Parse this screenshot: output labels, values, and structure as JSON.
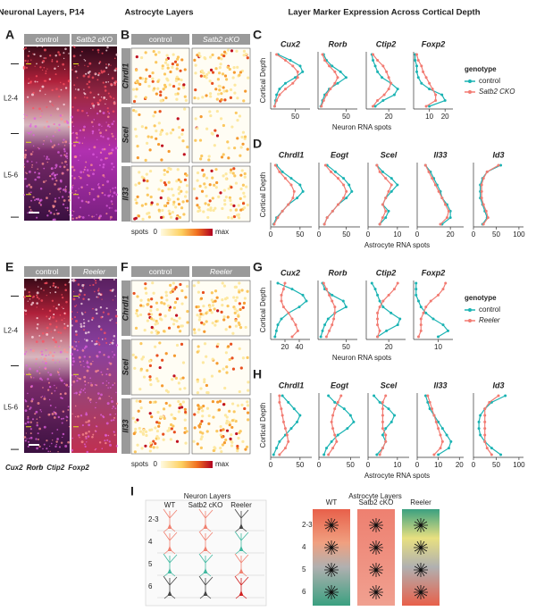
{
  "headers": [
    "Neuronal Layers, P14",
    "Astrocyte Layers",
    "Layer Marker Expression Across Cortical Depth"
  ],
  "panel_letters": [
    "A",
    "B",
    "C",
    "D",
    "E",
    "F",
    "G",
    "H",
    "I"
  ],
  "panel_a": {
    "columns": [
      "control",
      "Satb2 cKO"
    ],
    "layers": [
      "L2-4",
      "L5-6"
    ]
  },
  "panel_b": {
    "columns": [
      "control",
      "Satb2 cKO"
    ],
    "rows": [
      "Chrdl1",
      "Scel",
      "Il33"
    ],
    "colorbar": {
      "label": "spots",
      "min": 0,
      "max": "max"
    }
  },
  "panel_c": {
    "type": "line",
    "y_label": "Cortical Depth",
    "x_label": "Neuron RNA spots",
    "legend": {
      "title": "genotype"
    },
    "series": [
      {
        "name": "control",
        "color": "#1ab3b3"
      },
      {
        "name": "Satb2 CKO",
        "color": "#f27b72"
      }
    ],
    "plots": [
      {
        "title": "Cux2",
        "xlim": [
          0,
          80
        ],
        "xticks": [
          50
        ],
        "values": [
          [
            15,
            40,
            60,
            65,
            50,
            30,
            18,
            12,
            10,
            8
          ],
          [
            12,
            30,
            45,
            55,
            55,
            45,
            30,
            18,
            12,
            8
          ]
        ]
      },
      {
        "title": "Rorb",
        "xlim": [
          0,
          70
        ],
        "xticks": [
          50
        ],
        "values": [
          [
            10,
            15,
            25,
            40,
            50,
            35,
            20,
            12,
            8,
            5
          ],
          [
            8,
            12,
            20,
            30,
            35,
            30,
            22,
            15,
            10,
            6
          ]
        ]
      },
      {
        "title": "Ctip2",
        "xlim": [
          0,
          35
        ],
        "xticks": [
          20
        ],
        "values": [
          [
            5,
            6,
            8,
            10,
            14,
            22,
            28,
            25,
            15,
            8
          ],
          [
            6,
            10,
            15,
            18,
            20,
            22,
            20,
            16,
            10,
            6
          ]
        ]
      },
      {
        "title": "Foxp2",
        "xlim": [
          0,
          25
        ],
        "xticks": [
          10,
          20
        ],
        "values": [
          [
            1,
            1,
            2,
            2,
            3,
            5,
            10,
            18,
            20,
            10
          ],
          [
            2,
            3,
            5,
            6,
            8,
            10,
            12,
            14,
            14,
            8
          ]
        ]
      }
    ]
  },
  "panel_d": {
    "type": "line",
    "y_label": "Cortical Depth",
    "x_label": "Astrocyte RNA spots",
    "plots": [
      {
        "title": "Chrdl1",
        "xlim": [
          0,
          70
        ],
        "xticks": [
          0,
          50
        ],
        "values": [
          [
            10,
            20,
            35,
            50,
            55,
            45,
            30,
            20,
            10,
            5
          ],
          [
            8,
            15,
            25,
            35,
            40,
            38,
            30,
            20,
            12,
            6
          ]
        ]
      },
      {
        "title": "Eogt",
        "xlim": [
          0,
          75
        ],
        "xticks": [
          0,
          50
        ],
        "values": [
          [
            15,
            30,
            45,
            55,
            60,
            50,
            35,
            25,
            15,
            10
          ],
          [
            12,
            22,
            35,
            45,
            50,
            45,
            35,
            25,
            15,
            10
          ]
        ]
      },
      {
        "title": "Scel",
        "xlim": [
          0,
          14
        ],
        "xticks": [
          0,
          10
        ],
        "values": [
          [
            3,
            5,
            8,
            10,
            8,
            6,
            5,
            7,
            6,
            4
          ],
          [
            3,
            4,
            6,
            8,
            7,
            6,
            5,
            6,
            5,
            4
          ]
        ]
      },
      {
        "title": "Il33",
        "xlim": [
          0,
          28
        ],
        "xticks": [
          0,
          20
        ],
        "values": [
          [
            5,
            8,
            10,
            12,
            14,
            15,
            18,
            20,
            20,
            15
          ],
          [
            5,
            7,
            9,
            11,
            13,
            15,
            17,
            19,
            18,
            14
          ]
        ]
      },
      {
        "title": "Id3",
        "xlim": [
          0,
          110
        ],
        "xticks": [
          0,
          50,
          100
        ],
        "values": [
          [
            60,
            30,
            20,
            15,
            15,
            15,
            20,
            25,
            30,
            20
          ],
          [
            55,
            30,
            22,
            18,
            18,
            18,
            22,
            28,
            32,
            22
          ]
        ]
      }
    ]
  },
  "panel_e": {
    "columns": [
      "control",
      "Reeler"
    ],
    "layers": [
      "L2-4",
      "L5-6"
    ],
    "stains": [
      {
        "name": "Cux2",
        "color": "#ff3b3b"
      },
      {
        "name": "Rorb",
        "color": "#ffffff"
      },
      {
        "name": "Ctip2",
        "color": "#e040e0"
      },
      {
        "name": "Foxp2",
        "color": "#c8f040"
      }
    ]
  },
  "panel_f": {
    "columns": [
      "control",
      "Reeler"
    ],
    "rows": [
      "Chrdl1",
      "Scel",
      "Il33"
    ],
    "colorbar": {
      "label": "spots",
      "min": 0,
      "max": "max"
    }
  },
  "panel_g": {
    "type": "line",
    "y_label": "Cortical Depth",
    "x_label": "Neuron RNA spots",
    "legend": {
      "title": "genotype"
    },
    "series": [
      {
        "name": "control",
        "color": "#1ab3b3"
      },
      {
        "name": "Reeler",
        "color": "#f27b72"
      }
    ],
    "plots": [
      {
        "title": "Cux2",
        "xlim": [
          0,
          55
        ],
        "xticks": [
          20,
          40
        ],
        "values": [
          [
            10,
            30,
            45,
            50,
            40,
            25,
            15,
            10,
            8,
            6
          ],
          [
            20,
            18,
            15,
            15,
            18,
            25,
            30,
            35,
            38,
            30
          ]
        ]
      },
      {
        "title": "Rorb",
        "xlim": [
          0,
          70
        ],
        "xticks": [
          50
        ],
        "values": [
          [
            8,
            12,
            25,
            45,
            50,
            30,
            18,
            12,
            8,
            5
          ],
          [
            10,
            15,
            20,
            25,
            30,
            30,
            28,
            25,
            20,
            15
          ]
        ]
      },
      {
        "title": "Ctip2",
        "xlim": [
          0,
          35
        ],
        "xticks": [
          20
        ],
        "values": [
          [
            5,
            8,
            10,
            12,
            15,
            22,
            30,
            28,
            18,
            10
          ],
          [
            28,
            25,
            20,
            15,
            12,
            10,
            10,
            10,
            12,
            10
          ]
        ]
      },
      {
        "title": "Foxp2",
        "xlim": [
          0,
          16
        ],
        "xticks": [
          10
        ],
        "values": [
          [
            1,
            1,
            1,
            2,
            3,
            5,
            8,
            12,
            14,
            10
          ],
          [
            13,
            12,
            10,
            7,
            5,
            4,
            3,
            3,
            3,
            2
          ]
        ]
      }
    ]
  },
  "panel_h": {
    "type": "line",
    "y_label": "Cortical Depth",
    "x_label": "Astrocyte RNA spots",
    "plots": [
      {
        "title": "Chrdl1",
        "xlim": [
          0,
          70
        ],
        "xticks": [
          0,
          50
        ],
        "values": [
          [
            20,
            30,
            40,
            50,
            45,
            35,
            25,
            15,
            10,
            5
          ],
          [
            15,
            15,
            18,
            20,
            22,
            25,
            28,
            30,
            25,
            15
          ]
        ]
      },
      {
        "title": "Eogt",
        "xlim": [
          0,
          65
        ],
        "xticks": [
          0,
          50
        ],
        "values": [
          [
            15,
            25,
            40,
            50,
            55,
            45,
            30,
            20,
            12,
            8
          ],
          [
            35,
            30,
            25,
            22,
            20,
            22,
            25,
            28,
            22,
            15
          ]
        ]
      },
      {
        "title": "Scel",
        "xlim": [
          0,
          14
        ],
        "xticks": [
          0,
          10
        ],
        "values": [
          [
            2,
            4,
            7,
            9,
            8,
            6,
            5,
            6,
            5,
            3
          ],
          [
            6,
            5,
            5,
            5,
            5,
            5,
            6,
            6,
            5,
            4
          ]
        ]
      },
      {
        "title": "Il33",
        "xlim": [
          0,
          22
        ],
        "xticks": [
          0,
          10,
          20
        ],
        "values": [
          [
            4,
            5,
            6,
            8,
            10,
            12,
            14,
            16,
            15,
            10
          ],
          [
            5,
            6,
            7,
            8,
            9,
            10,
            11,
            12,
            11,
            8
          ]
        ]
      },
      {
        "title": "Id3",
        "xlim": [
          0,
          110
        ],
        "xticks": [
          0,
          50,
          100
        ],
        "values": [
          [
            70,
            40,
            25,
            15,
            12,
            12,
            15,
            25,
            40,
            60
          ],
          [
            55,
            35,
            25,
            25,
            25,
            25,
            25,
            25,
            30,
            40
          ]
        ]
      }
    ]
  },
  "panel_i": {
    "neuron_layers": {
      "title": "Neuron Layers",
      "columns": [
        "WT",
        "Satb2 cKO",
        "Reeler"
      ],
      "layers": [
        "2-3",
        "4",
        "5",
        "6"
      ]
    },
    "astrocyte_layers": {
      "title": "Astrocyte Layers",
      "columns": [
        "WT",
        "Satb2 cKO",
        "Reeler"
      ],
      "layers": [
        "2-3",
        "4",
        "5",
        "6"
      ]
    }
  }
}
